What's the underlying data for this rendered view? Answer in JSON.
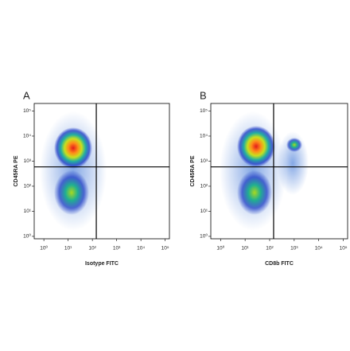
{
  "chart_data": [
    {
      "type": "scatter",
      "panel_label": "A",
      "xlabel": "Isotype FITC",
      "ylabel": "CD45RA PE",
      "xscale": "log",
      "yscale": "log",
      "xlim": [
        0.4,
        150000
      ],
      "ylim": [
        0.8,
        200000
      ],
      "xticks": [
        {
          "value": 1,
          "label": "10⁰"
        },
        {
          "value": 10,
          "label": "10¹"
        },
        {
          "value": 100,
          "label": "10²"
        },
        {
          "value": 1000,
          "label": "10³"
        },
        {
          "value": 10000,
          "label": "10⁴"
        },
        {
          "value": 100000,
          "label": "10⁵"
        }
      ],
      "yticks": [
        {
          "value": 1,
          "label": "10⁰"
        },
        {
          "value": 10,
          "label": "10¹"
        },
        {
          "value": 100,
          "label": "10²"
        },
        {
          "value": 1000,
          "label": "10³"
        },
        {
          "value": 10000,
          "label": "10⁴"
        },
        {
          "value": 100000,
          "label": "10⁵"
        }
      ],
      "gate": {
        "x": 145,
        "y": 590
      }
    },
    {
      "type": "scatter",
      "panel_label": "B",
      "xlabel": "CD8b FITC",
      "ylabel": "CD45RA PE",
      "xscale": "log",
      "yscale": "log",
      "xlim": [
        0.4,
        150000
      ],
      "ylim": [
        0.8,
        200000
      ],
      "xticks": [
        {
          "value": 1,
          "label": "10⁰"
        },
        {
          "value": 10,
          "label": "10¹"
        },
        {
          "value": 100,
          "label": "10²"
        },
        {
          "value": 1000,
          "label": "10³"
        },
        {
          "value": 10000,
          "label": "10⁴"
        },
        {
          "value": 100000,
          "label": "10⁵"
        }
      ],
      "yticks": [
        {
          "value": 1,
          "label": "10⁰"
        },
        {
          "value": 10,
          "label": "10¹"
        },
        {
          "value": 100,
          "label": "10²"
        },
        {
          "value": 1000,
          "label": "10³"
        },
        {
          "value": 10000,
          "label": "10⁴"
        },
        {
          "value": 100000,
          "label": "10⁵"
        }
      ],
      "gate": {
        "x": 145,
        "y": 590
      }
    }
  ]
}
